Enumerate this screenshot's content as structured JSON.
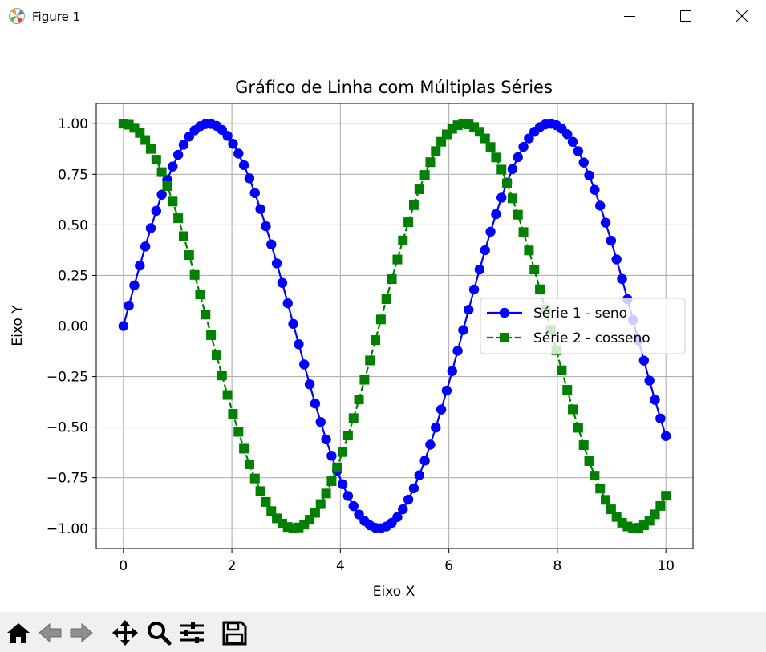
{
  "window": {
    "title": "Figure 1",
    "minimize_icon": "minimize-icon",
    "maximize_icon": "maximize-icon",
    "close_icon": "close-icon"
  },
  "toolbar": {
    "buttons": [
      "home-icon",
      "back-arrow-icon",
      "forward-arrow-icon",
      "pan-icon",
      "zoom-icon",
      "configure-subplots-icon",
      "save-icon"
    ]
  },
  "chart_data": {
    "type": "line",
    "title": "Gráfico de Linha com Múltiplas Séries",
    "xlabel": "Eixo X",
    "ylabel": "Eixo Y",
    "xlim": [
      -0.5,
      10.5
    ],
    "ylim": [
      -1.1,
      1.1
    ],
    "xticks": [
      "0",
      "2",
      "4",
      "6",
      "8",
      "10"
    ],
    "xtick_values": [
      0,
      2,
      4,
      6,
      8,
      10
    ],
    "yticks": [
      "−1.00",
      "−0.75",
      "−0.50",
      "−0.25",
      "0.00",
      "0.25",
      "0.50",
      "0.75",
      "1.00"
    ],
    "ytick_values": [
      -1.0,
      -0.75,
      -0.5,
      -0.25,
      0.0,
      0.25,
      0.5,
      0.75,
      1.0
    ],
    "grid": true,
    "legend_position": "center right",
    "x": [
      0.0,
      0.101,
      0.202,
      0.303,
      0.404,
      0.505,
      0.606,
      0.707,
      0.808,
      0.909,
      1.01,
      1.111,
      1.212,
      1.313,
      1.414,
      1.515,
      1.616,
      1.717,
      1.818,
      1.919,
      2.02,
      2.121,
      2.222,
      2.323,
      2.424,
      2.525,
      2.626,
      2.727,
      2.828,
      2.929,
      3.03,
      3.131,
      3.232,
      3.333,
      3.434,
      3.535,
      3.636,
      3.737,
      3.838,
      3.939,
      4.04,
      4.141,
      4.242,
      4.343,
      4.444,
      4.545,
      4.646,
      4.747,
      4.848,
      4.949,
      5.051,
      5.152,
      5.253,
      5.354,
      5.455,
      5.556,
      5.657,
      5.758,
      5.859,
      5.96,
      6.061,
      6.162,
      6.263,
      6.364,
      6.465,
      6.566,
      6.667,
      6.768,
      6.869,
      6.97,
      7.071,
      7.172,
      7.273,
      7.374,
      7.475,
      7.576,
      7.677,
      7.778,
      7.879,
      7.98,
      8.081,
      8.182,
      8.283,
      8.384,
      8.485,
      8.586,
      8.687,
      8.788,
      8.889,
      8.99,
      9.091,
      9.192,
      9.293,
      9.394,
      9.495,
      9.596,
      9.697,
      9.798,
      9.899,
      10.0
    ],
    "series": [
      {
        "name": "Série 1 - seno",
        "color": "#0000ff",
        "marker": "circle",
        "linestyle": "solid",
        "values": [
          0.0,
          0.1008,
          0.2007,
          0.2984,
          0.393,
          0.4836,
          0.5693,
          0.6491,
          0.7223,
          0.7883,
          0.8463,
          0.8959,
          0.9365,
          0.9676,
          0.9878,
          0.9984,
          0.999,
          0.9894,
          0.9696,
          0.94,
          0.9008,
          0.8523,
          0.7952,
          0.7299,
          0.6573,
          0.5781,
          0.4931,
          0.4033,
          0.3096,
          0.2131,
          0.1124,
          0.0105,
          -0.0902,
          -0.1901,
          -0.2881,
          -0.3834,
          -0.4745,
          -0.561,
          -0.6415,
          -0.7153,
          -0.782,
          -0.8403,
          -0.8903,
          -0.9317,
          -0.964,
          -0.9854,
          -0.9975,
          -0.9995,
          -0.9912,
          -0.9727,
          -0.9444,
          -0.9061,
          -0.8584,
          -0.802,
          -0.7374,
          -0.6654,
          -0.5867,
          -0.5022,
          -0.4127,
          -0.3193,
          -0.2229,
          -0.1227,
          -0.0202,
          0.0806,
          0.1808,
          0.2792,
          0.3744,
          0.4658,
          0.553,
          0.6343,
          0.7085,
          0.7757,
          0.8346,
          0.8854,
          0.9275,
          0.9605,
          0.9834,
          0.9966,
          0.9998,
          0.9926,
          0.9754,
          0.9483,
          0.9109,
          0.8642,
          0.8082,
          0.7442,
          0.673,
          0.5949,
          0.5107,
          0.4219,
          0.3292,
          0.2326,
          0.1326,
          0.0303,
          -0.0705,
          -0.171,
          -0.2696,
          -0.365,
          -0.4571,
          -0.544
        ]
      },
      {
        "name": "Série 2 - cosseno",
        "color": "#008000",
        "marker": "square",
        "linestyle": "dashed",
        "values": [
          1.0,
          0.9949,
          0.9797,
          0.9544,
          0.9195,
          0.8753,
          0.8221,
          0.7607,
          0.6915,
          0.6152,
          0.5328,
          0.4441,
          0.3506,
          0.2525,
          0.1559,
          0.0564,
          -0.0453,
          -0.1452,
          -0.2447,
          -0.3411,
          -0.4343,
          -0.5231,
          -0.6063,
          -0.6836,
          -0.7537,
          -0.816,
          -0.8698,
          -0.915,
          -0.9509,
          -0.977,
          -0.9937,
          -0.9999,
          -0.9959,
          -0.9818,
          -0.9576,
          -0.9236,
          -0.8803,
          -0.8278,
          -0.7672,
          -0.6988,
          -0.6232,
          -0.5411,
          -0.4554,
          -0.3633,
          -0.2659,
          -0.1702,
          -0.0696,
          0.0324,
          0.1327,
          0.2317,
          0.3287,
          0.4232,
          0.5129,
          0.5974,
          0.6755,
          0.7466,
          0.8098,
          0.8647,
          0.9109,
          0.9477,
          0.975,
          0.9924,
          0.9998,
          0.9967,
          0.9835,
          0.9603,
          0.9273,
          0.8849,
          0.8332,
          0.7733,
          0.7058,
          0.631,
          0.55,
          0.4642,
          0.3734,
          0.2791,
          0.1814,
          0.0825,
          -0.0193,
          -0.1201,
          -0.2187,
          -0.3153,
          -0.4121,
          -0.5032,
          -0.5888,
          -0.6679,
          -0.7398,
          -0.8038,
          -0.8594,
          -0.9062,
          -0.944,
          -0.9726,
          -0.9911,
          -0.9995,
          -0.9975,
          -0.9853,
          -0.9629,
          -0.931,
          -0.8894,
          -0.8391
        ]
      }
    ]
  }
}
